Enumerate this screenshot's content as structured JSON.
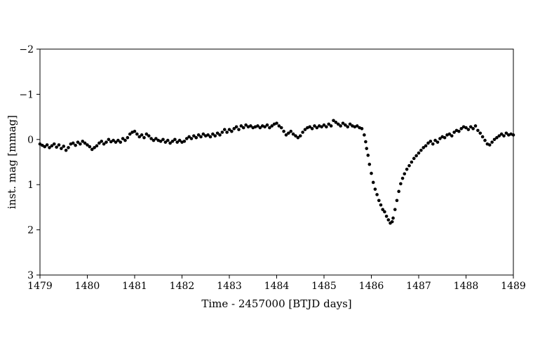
{
  "chart_data": {
    "type": "scatter",
    "title": "",
    "xlabel": "Time - 2457000 [BTJD days]",
    "ylabel": "inst. mag [mmag]",
    "xlim": [
      1479,
      1489
    ],
    "ylim": [
      3,
      -2
    ],
    "y_inverted": true,
    "grid": false,
    "marker_color": "#000000",
    "xticks": [
      1479,
      1480,
      1481,
      1482,
      1483,
      1484,
      1485,
      1486,
      1487,
      1488,
      1489
    ],
    "yticks": [
      -2,
      -1,
      0,
      1,
      2,
      3
    ],
    "ytick_labels": [
      "−2",
      "−1",
      "0",
      "1",
      "2",
      "3"
    ],
    "points": [
      [
        1479.0,
        0.1
      ],
      [
        1479.05,
        0.13
      ],
      [
        1479.1,
        0.16
      ],
      [
        1479.15,
        0.12
      ],
      [
        1479.2,
        0.18
      ],
      [
        1479.25,
        0.14
      ],
      [
        1479.3,
        0.1
      ],
      [
        1479.35,
        0.17
      ],
      [
        1479.4,
        0.12
      ],
      [
        1479.45,
        0.2
      ],
      [
        1479.5,
        0.15
      ],
      [
        1479.55,
        0.24
      ],
      [
        1479.6,
        0.18
      ],
      [
        1479.65,
        0.1
      ],
      [
        1479.7,
        0.08
      ],
      [
        1479.75,
        0.13
      ],
      [
        1479.8,
        0.06
      ],
      [
        1479.85,
        0.1
      ],
      [
        1479.9,
        0.04
      ],
      [
        1479.95,
        0.08
      ],
      [
        1480.0,
        0.12
      ],
      [
        1480.05,
        0.16
      ],
      [
        1480.1,
        0.22
      ],
      [
        1480.15,
        0.18
      ],
      [
        1480.2,
        0.14
      ],
      [
        1480.25,
        0.08
      ],
      [
        1480.3,
        0.04
      ],
      [
        1480.35,
        0.1
      ],
      [
        1480.4,
        0.06
      ],
      [
        1480.45,
        0.0
      ],
      [
        1480.5,
        0.05
      ],
      [
        1480.55,
        0.02
      ],
      [
        1480.6,
        0.06
      ],
      [
        1480.65,
        0.02
      ],
      [
        1480.7,
        0.06
      ],
      [
        1480.75,
        -0.02
      ],
      [
        1480.8,
        0.02
      ],
      [
        1480.85,
        -0.04
      ],
      [
        1480.9,
        -0.12
      ],
      [
        1480.95,
        -0.16
      ],
      [
        1481.0,
        -0.18
      ],
      [
        1481.05,
        -0.12
      ],
      [
        1481.1,
        -0.06
      ],
      [
        1481.15,
        -0.1
      ],
      [
        1481.2,
        -0.04
      ],
      [
        1481.25,
        -0.12
      ],
      [
        1481.3,
        -0.08
      ],
      [
        1481.35,
        -0.02
      ],
      [
        1481.4,
        0.02
      ],
      [
        1481.45,
        -0.02
      ],
      [
        1481.5,
        0.02
      ],
      [
        1481.55,
        0.04
      ],
      [
        1481.6,
        0.0
      ],
      [
        1481.65,
        0.06
      ],
      [
        1481.7,
        0.02
      ],
      [
        1481.75,
        0.08
      ],
      [
        1481.8,
        0.04
      ],
      [
        1481.85,
        0.0
      ],
      [
        1481.9,
        0.06
      ],
      [
        1481.95,
        0.02
      ],
      [
        1482.0,
        0.06
      ],
      [
        1482.05,
        0.04
      ],
      [
        1482.1,
        -0.02
      ],
      [
        1482.15,
        -0.06
      ],
      [
        1482.2,
        -0.02
      ],
      [
        1482.25,
        -0.08
      ],
      [
        1482.3,
        -0.04
      ],
      [
        1482.35,
        -0.1
      ],
      [
        1482.4,
        -0.06
      ],
      [
        1482.45,
        -0.12
      ],
      [
        1482.5,
        -0.08
      ],
      [
        1482.55,
        -0.1
      ],
      [
        1482.6,
        -0.06
      ],
      [
        1482.65,
        -0.12
      ],
      [
        1482.7,
        -0.08
      ],
      [
        1482.75,
        -0.14
      ],
      [
        1482.8,
        -0.1
      ],
      [
        1482.85,
        -0.16
      ],
      [
        1482.9,
        -0.22
      ],
      [
        1482.95,
        -0.16
      ],
      [
        1483.0,
        -0.22
      ],
      [
        1483.05,
        -0.18
      ],
      [
        1483.1,
        -0.24
      ],
      [
        1483.15,
        -0.28
      ],
      [
        1483.2,
        -0.22
      ],
      [
        1483.25,
        -0.3
      ],
      [
        1483.3,
        -0.26
      ],
      [
        1483.35,
        -0.32
      ],
      [
        1483.4,
        -0.28
      ],
      [
        1483.45,
        -0.3
      ],
      [
        1483.5,
        -0.26
      ],
      [
        1483.55,
        -0.28
      ],
      [
        1483.6,
        -0.3
      ],
      [
        1483.65,
        -0.26
      ],
      [
        1483.7,
        -0.3
      ],
      [
        1483.75,
        -0.28
      ],
      [
        1483.8,
        -0.32
      ],
      [
        1483.85,
        -0.26
      ],
      [
        1483.9,
        -0.3
      ],
      [
        1483.95,
        -0.34
      ],
      [
        1484.0,
        -0.36
      ],
      [
        1484.05,
        -0.3
      ],
      [
        1484.1,
        -0.26
      ],
      [
        1484.15,
        -0.18
      ],
      [
        1484.2,
        -0.1
      ],
      [
        1484.25,
        -0.14
      ],
      [
        1484.3,
        -0.18
      ],
      [
        1484.35,
        -0.12
      ],
      [
        1484.4,
        -0.08
      ],
      [
        1484.45,
        -0.04
      ],
      [
        1484.5,
        -0.08
      ],
      [
        1484.55,
        -0.16
      ],
      [
        1484.6,
        -0.22
      ],
      [
        1484.65,
        -0.26
      ],
      [
        1484.7,
        -0.28
      ],
      [
        1484.75,
        -0.24
      ],
      [
        1484.8,
        -0.3
      ],
      [
        1484.85,
        -0.26
      ],
      [
        1484.9,
        -0.3
      ],
      [
        1484.95,
        -0.28
      ],
      [
        1485.0,
        -0.32
      ],
      [
        1485.05,
        -0.28
      ],
      [
        1485.1,
        -0.34
      ],
      [
        1485.15,
        -0.3
      ],
      [
        1485.2,
        -0.42
      ],
      [
        1485.25,
        -0.38
      ],
      [
        1485.3,
        -0.34
      ],
      [
        1485.35,
        -0.3
      ],
      [
        1485.4,
        -0.36
      ],
      [
        1485.45,
        -0.32
      ],
      [
        1485.5,
        -0.28
      ],
      [
        1485.55,
        -0.34
      ],
      [
        1485.6,
        -0.3
      ],
      [
        1485.65,
        -0.28
      ],
      [
        1485.7,
        -0.3
      ],
      [
        1485.75,
        -0.26
      ],
      [
        1485.8,
        -0.24
      ],
      [
        1485.85,
        -0.1
      ],
      [
        1485.88,
        0.05
      ],
      [
        1485.9,
        0.2
      ],
      [
        1485.93,
        0.35
      ],
      [
        1485.96,
        0.55
      ],
      [
        1486.0,
        0.75
      ],
      [
        1486.04,
        0.95
      ],
      [
        1486.08,
        1.1
      ],
      [
        1486.12,
        1.22
      ],
      [
        1486.16,
        1.35
      ],
      [
        1486.2,
        1.45
      ],
      [
        1486.24,
        1.55
      ],
      [
        1486.28,
        1.6
      ],
      [
        1486.32,
        1.7
      ],
      [
        1486.36,
        1.78
      ],
      [
        1486.4,
        1.85
      ],
      [
        1486.44,
        1.82
      ],
      [
        1486.46,
        1.74
      ],
      [
        1486.5,
        1.55
      ],
      [
        1486.54,
        1.35
      ],
      [
        1486.58,
        1.15
      ],
      [
        1486.62,
        0.98
      ],
      [
        1486.66,
        0.86
      ],
      [
        1486.7,
        0.76
      ],
      [
        1486.75,
        0.66
      ],
      [
        1486.8,
        0.58
      ],
      [
        1486.85,
        0.5
      ],
      [
        1486.9,
        0.42
      ],
      [
        1486.95,
        0.36
      ],
      [
        1487.0,
        0.3
      ],
      [
        1487.05,
        0.24
      ],
      [
        1487.1,
        0.18
      ],
      [
        1487.15,
        0.14
      ],
      [
        1487.2,
        0.08
      ],
      [
        1487.25,
        0.04
      ],
      [
        1487.3,
        0.1
      ],
      [
        1487.35,
        0.02
      ],
      [
        1487.4,
        0.06
      ],
      [
        1487.45,
        -0.02
      ],
      [
        1487.5,
        -0.06
      ],
      [
        1487.55,
        -0.04
      ],
      [
        1487.6,
        -0.1
      ],
      [
        1487.65,
        -0.12
      ],
      [
        1487.7,
        -0.08
      ],
      [
        1487.75,
        -0.16
      ],
      [
        1487.8,
        -0.2
      ],
      [
        1487.85,
        -0.18
      ],
      [
        1487.9,
        -0.24
      ],
      [
        1487.95,
        -0.28
      ],
      [
        1488.0,
        -0.26
      ],
      [
        1488.05,
        -0.22
      ],
      [
        1488.1,
        -0.28
      ],
      [
        1488.15,
        -0.24
      ],
      [
        1488.2,
        -0.3
      ],
      [
        1488.25,
        -0.2
      ],
      [
        1488.3,
        -0.14
      ],
      [
        1488.35,
        -0.06
      ],
      [
        1488.4,
        0.02
      ],
      [
        1488.45,
        0.1
      ],
      [
        1488.5,
        0.12
      ],
      [
        1488.55,
        0.06
      ],
      [
        1488.6,
        0.0
      ],
      [
        1488.65,
        -0.04
      ],
      [
        1488.7,
        -0.08
      ],
      [
        1488.75,
        -0.12
      ],
      [
        1488.8,
        -0.08
      ],
      [
        1488.85,
        -0.14
      ],
      [
        1488.9,
        -0.1
      ],
      [
        1488.95,
        -0.12
      ],
      [
        1489.0,
        -0.1
      ]
    ]
  }
}
